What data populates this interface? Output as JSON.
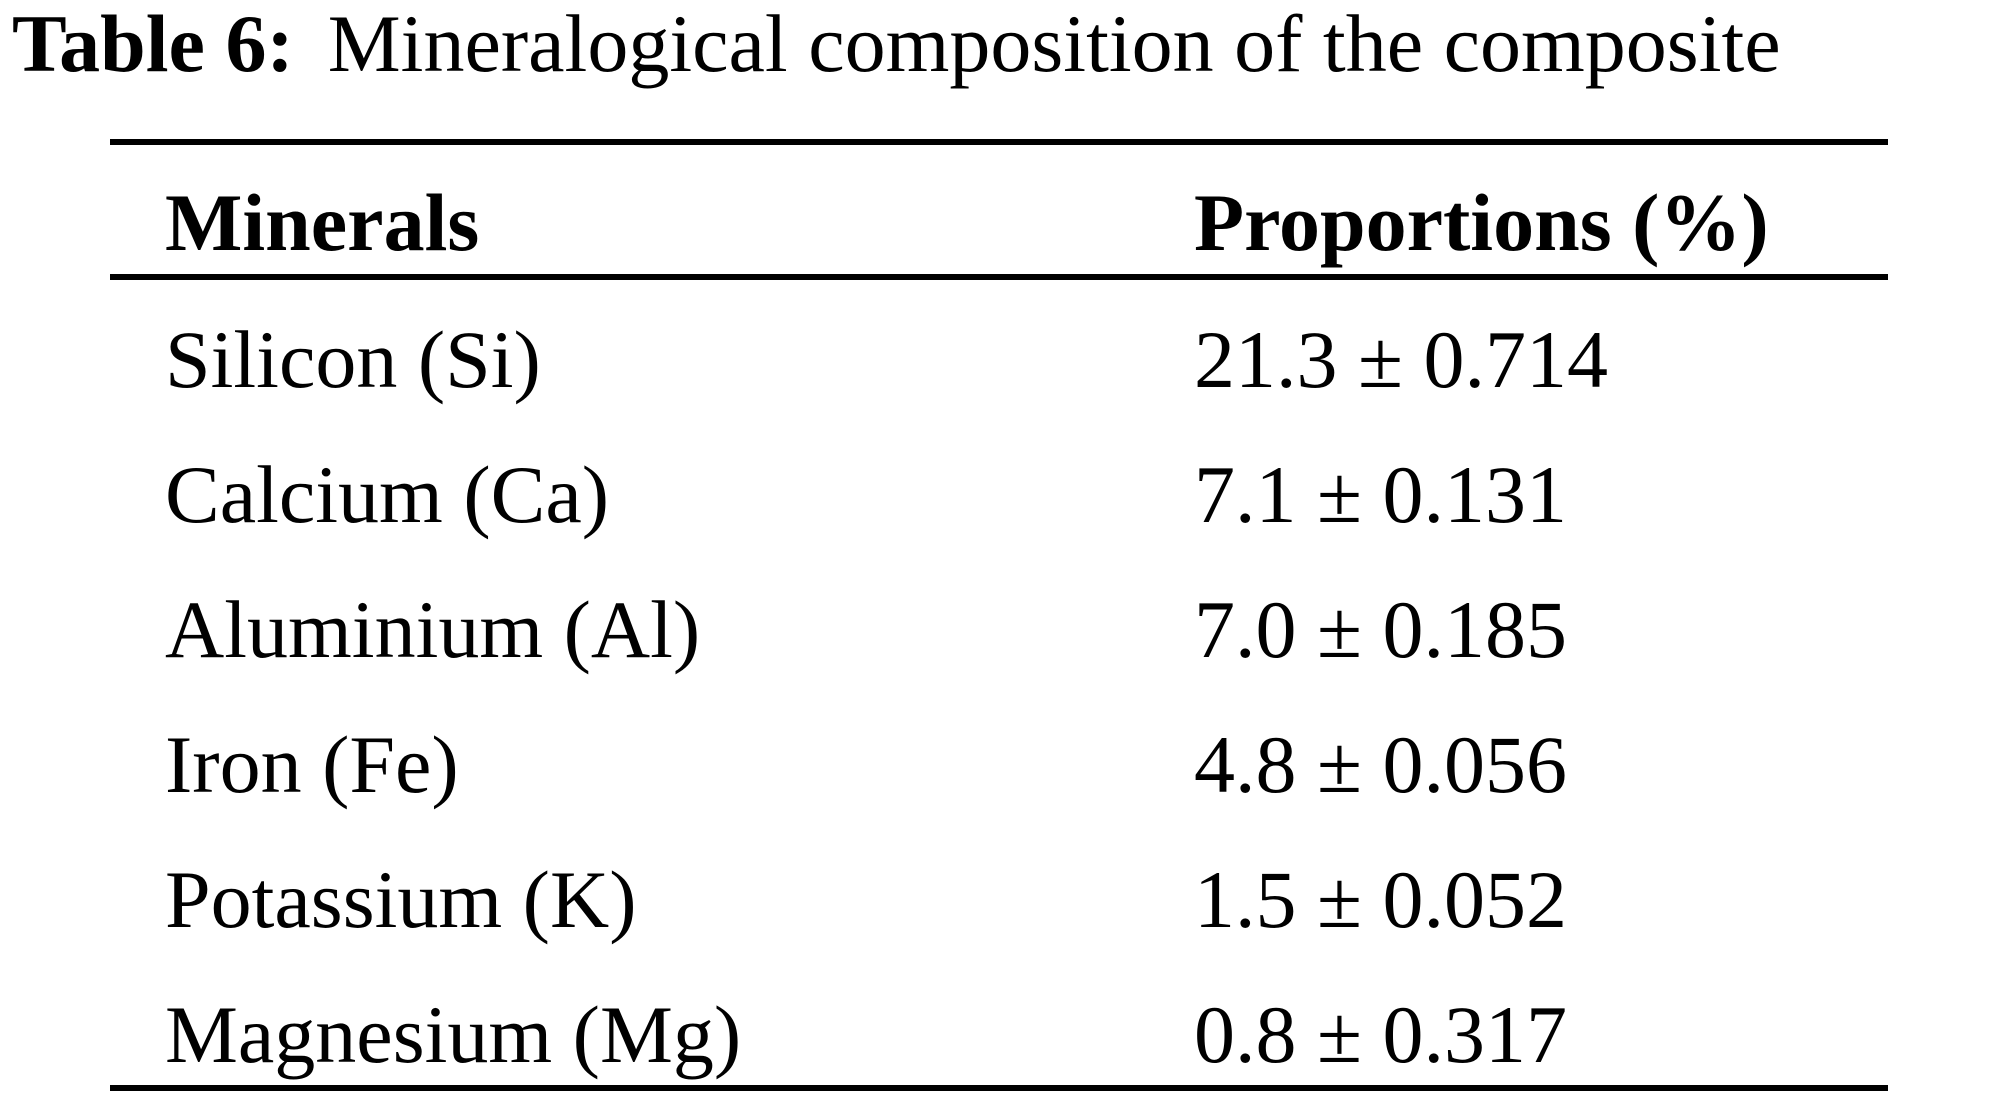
{
  "caption": {
    "label": "Table 6:",
    "text": "Mineralogical composition of the composite"
  },
  "table": {
    "headers": [
      "Minerals",
      "Proportions (%)"
    ],
    "rows": [
      {
        "mineral": "Silicon (Si)",
        "proportion": "21.3 ± 0.714"
      },
      {
        "mineral": "Calcium (Ca)",
        "proportion": "7.1 ± 0.131"
      },
      {
        "mineral": "Aluminium (Al)",
        "proportion": "7.0 ± 0.185"
      },
      {
        "mineral": "Iron (Fe)",
        "proportion": "4.8 ± 0.056"
      },
      {
        "mineral": "Potassium (K)",
        "proportion": "1.5 ± 0.052"
      },
      {
        "mineral": "Magnesium (Mg)",
        "proportion": "0.8 ± 0.317"
      }
    ]
  }
}
